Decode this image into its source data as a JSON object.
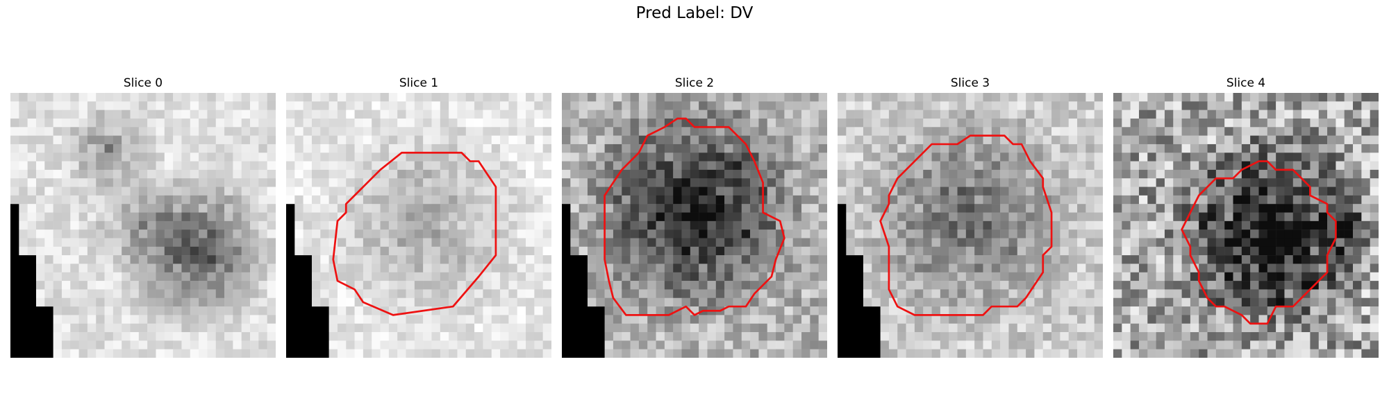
{
  "figure": {
    "title": "Pred Label: DV"
  },
  "panels": [
    {
      "title": "Slice 0",
      "has_contour": false,
      "tone": "mixed",
      "dark_center": false
    },
    {
      "title": "Slice 1",
      "has_contour": true,
      "tone": "light",
      "dark_center": false
    },
    {
      "title": "Slice 2",
      "has_contour": true,
      "tone": "dark",
      "dark_center": true
    },
    {
      "title": "Slice 3",
      "has_contour": true,
      "tone": "medium",
      "dark_center": false
    },
    {
      "title": "Slice 4",
      "has_contour": true,
      "tone": "noisy",
      "dark_center": true
    }
  ],
  "colors": {
    "contour": "#ee1111",
    "background": "#ffffff"
  }
}
